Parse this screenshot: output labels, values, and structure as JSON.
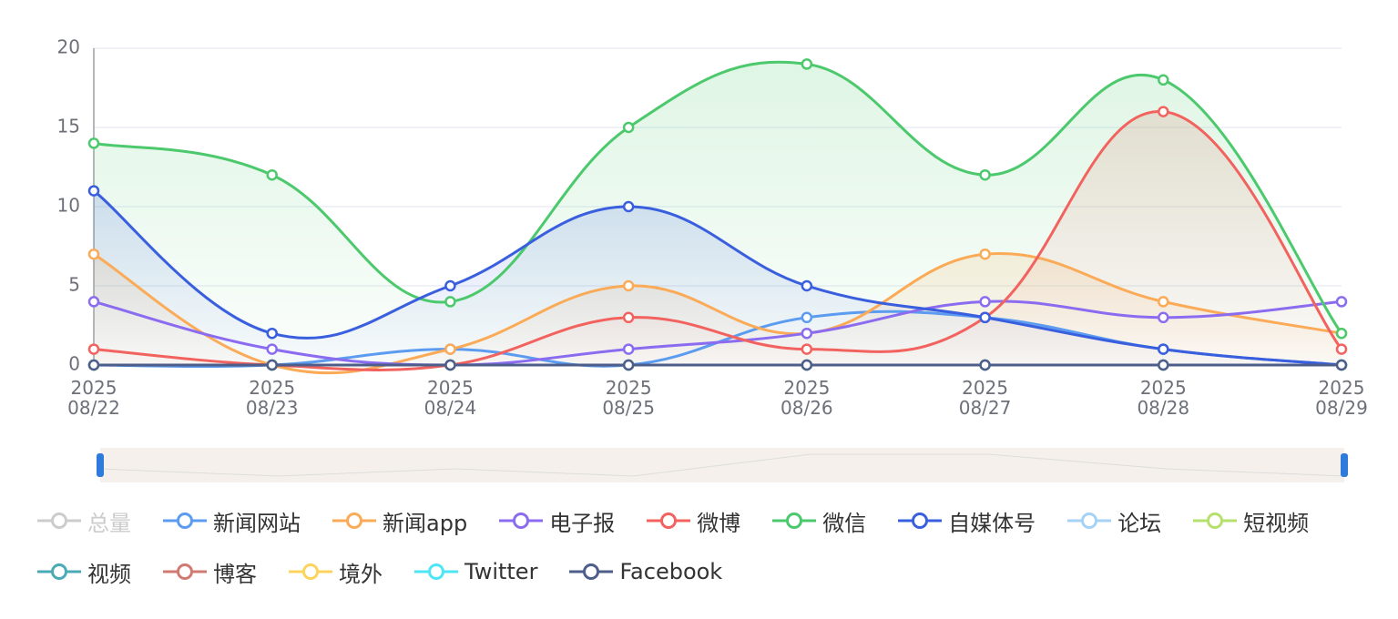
{
  "chart_data": {
    "type": "line",
    "smooth": true,
    "categories": [
      "2025\n08/22",
      "2025\n08/23",
      "2025\n08/24",
      "2025\n08/25",
      "2025\n08/26",
      "2025\n08/27",
      "2025\n08/28",
      "2025\n08/29"
    ],
    "ylim": [
      0,
      20
    ],
    "yticks": [
      0,
      5,
      10,
      15,
      20
    ],
    "grid": true,
    "inactive_series": [
      {
        "name": "总量",
        "color": "#cccccc"
      }
    ],
    "series": [
      {
        "name": "新闻网站",
        "color": "#5b9bf0",
        "values": [
          0,
          0,
          1,
          0,
          3,
          3,
          1,
          0
        ]
      },
      {
        "name": "新闻app",
        "color": "#fbab57",
        "area": true,
        "values": [
          7,
          0,
          1,
          5,
          2,
          7,
          4,
          2
        ]
      },
      {
        "name": "电子报",
        "color": "#8b6cf0",
        "values": [
          4,
          1,
          0,
          1,
          2,
          4,
          3,
          4
        ]
      },
      {
        "name": "微博",
        "color": "#f2635f",
        "area": true,
        "values": [
          1,
          0,
          0,
          3,
          1,
          3,
          16,
          1
        ]
      },
      {
        "name": "微信",
        "color": "#4cc96c",
        "area": true,
        "values": [
          14,
          12,
          4,
          15,
          19,
          12,
          18,
          2
        ]
      },
      {
        "name": "自媒体号",
        "color": "#3a5fde",
        "area": true,
        "values": [
          11,
          2,
          5,
          10,
          5,
          3,
          1,
          0
        ]
      },
      {
        "name": "论坛",
        "color": "#a5d2f5",
        "values": [
          0,
          0,
          0,
          0,
          0,
          0,
          0,
          0
        ]
      },
      {
        "name": "短视频",
        "color": "#b5e06c",
        "values": [
          0,
          0,
          0,
          0,
          0,
          0,
          0,
          0
        ]
      },
      {
        "name": "视频",
        "color": "#4aabb5",
        "values": [
          0,
          0,
          0,
          0,
          0,
          0,
          0,
          0
        ]
      },
      {
        "name": "博客",
        "color": "#d07a72",
        "values": [
          0,
          0,
          0,
          0,
          0,
          0,
          0,
          0
        ]
      },
      {
        "name": "境外",
        "color": "#fcd45c",
        "values": [
          0,
          0,
          0,
          0,
          0,
          0,
          0,
          0
        ]
      },
      {
        "name": "Twitter",
        "color": "#4ee6f5",
        "values": [
          0,
          0,
          0,
          0,
          0,
          0,
          0,
          0
        ]
      },
      {
        "name": "Facebook",
        "color": "#4d5e8a",
        "values": [
          0,
          0,
          0,
          0,
          0,
          0,
          0,
          0
        ]
      }
    ]
  }
}
